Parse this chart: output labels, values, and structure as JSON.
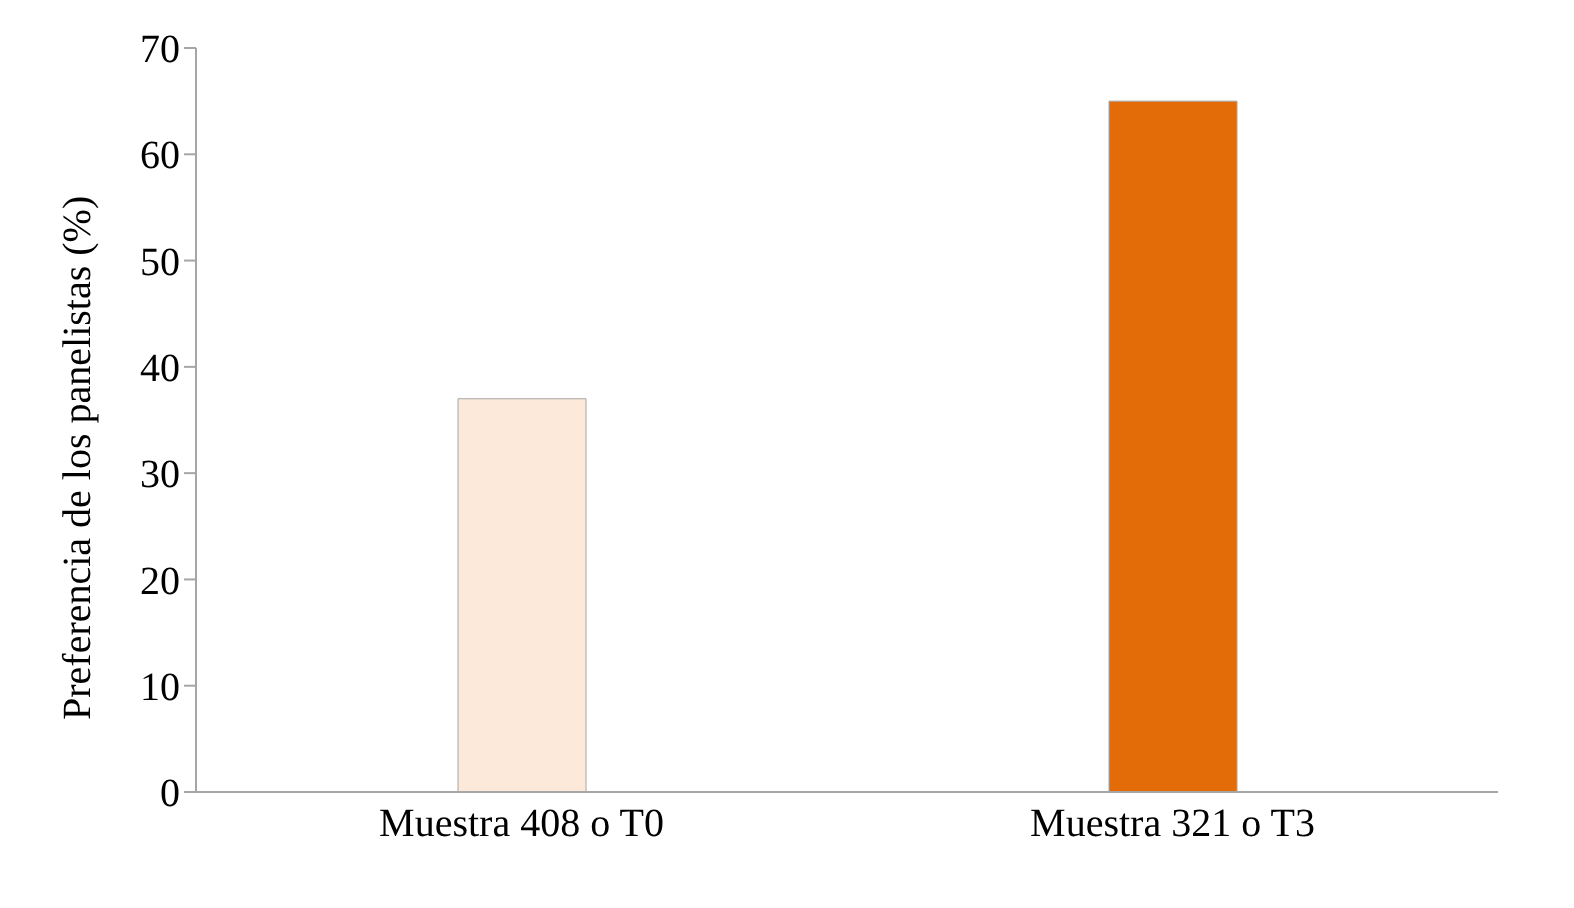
{
  "chart_data": {
    "type": "bar",
    "ylabel": "Preferencia de los panelistas (%)",
    "categories": [
      "Muestra 408 o T0",
      "Muestra 321 o T3"
    ],
    "values": [
      37,
      65
    ],
    "colors": [
      "#fde9d9",
      "#e36c09"
    ],
    "ylim": [
      0,
      70
    ],
    "yticks": [
      0,
      10,
      20,
      30,
      40,
      50,
      60,
      70
    ],
    "grid": false
  }
}
